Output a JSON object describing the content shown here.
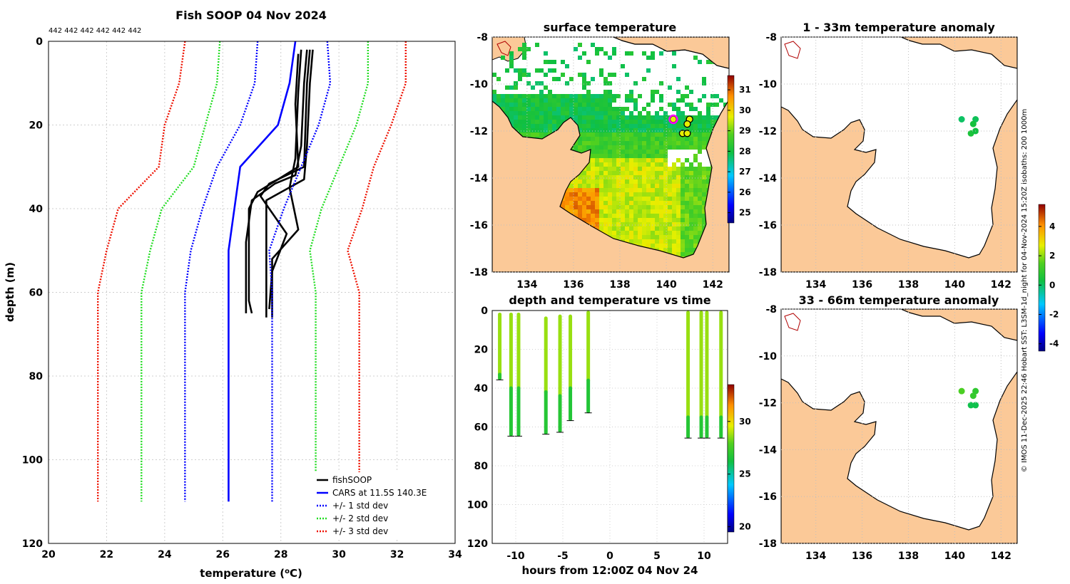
{
  "profile": {
    "title": "Fish SOOP 04 Nov 2024",
    "counts": "442 442 442 442 442 442",
    "xlabel": "temperature (",
    "xlabel_sup": "o",
    "xlabel_end": "C)",
    "ylabel": "depth (m)",
    "legend": [
      "fishSOOP",
      "CARS at 11.5S 140.3E",
      "+/- 1 std dev",
      "+/- 2 std dev",
      "+/- 3 std dev"
    ]
  },
  "maps": {
    "surface_title": "surface temperature",
    "anom1_title": "1 - 33m temperature anomaly",
    "anom2_title": "33 - 66m temperature anomaly",
    "lon_ticks": [
      "134",
      "136",
      "138",
      "140",
      "142"
    ],
    "lat_ticks": [
      "-8",
      "-10",
      "-12",
      "-14",
      "-16",
      "-18"
    ],
    "sst_colorbar_ticks": [
      "31",
      "30",
      "29",
      "28",
      "27",
      "26",
      "25"
    ],
    "anom_colorbar_ticks": [
      "4",
      "2",
      "0",
      "-2",
      "-4"
    ]
  },
  "time_panel": {
    "title": "depth and temperature vs time",
    "xlabel": "hours from 12:00Z 04 Nov 24",
    "colorbar_ticks": [
      "30",
      "25",
      "20"
    ]
  },
  "side_note": "© IMOS 11-Dec-2025 22:46 Hobart SST: L3SM-1d_night for 04-Nov-2024 15:20Z isobaths: 200  1000m",
  "colors": {
    "fishSOOP": "#000000",
    "CARS": "#0000ff",
    "std1": "#0000ff",
    "std2": "#22dd22",
    "std3": "#ee1100",
    "land": "#fbc998"
  },
  "chart_data": [
    {
      "type": "line",
      "title": "Fish SOOP 04 Nov 2024",
      "xlabel": "temperature (oC)",
      "ylabel": "depth (m)",
      "xlim": [
        20,
        34
      ],
      "ylim": [
        0,
        120
      ],
      "y_reversed": true,
      "xticks": [
        20,
        22,
        24,
        26,
        28,
        30,
        32,
        34
      ],
      "yticks": [
        0,
        20,
        40,
        60,
        80,
        100,
        120
      ],
      "grid": true,
      "legend_position": "bottom-right",
      "series": [
        {
          "name": "fishSOOP",
          "style": "solid",
          "color": "#000000",
          "profiles": [
            {
              "depth": [
                2,
                10,
                25,
                32,
                34,
                38,
                48,
                60,
                65
              ],
              "temp": [
                28.9,
                28.8,
                28.7,
                28.5,
                27.8,
                27.0,
                26.8,
                26.8,
                26.8
              ]
            },
            {
              "depth": [
                2,
                10,
                25,
                33,
                38,
                48,
                60,
                66
              ],
              "temp": [
                29.1,
                29.0,
                28.9,
                28.8,
                27.5,
                27.5,
                27.5,
                27.5
              ]
            },
            {
              "depth": [
                2,
                12,
                28,
                35,
                45,
                52,
                60,
                66
              ],
              "temp": [
                28.7,
                28.6,
                28.5,
                28.3,
                28.6,
                27.7,
                27.7,
                27.7
              ]
            },
            {
              "depth": [
                3,
                15,
                30,
                36,
                40,
                50,
                62,
                65
              ],
              "temp": [
                28.6,
                28.5,
                28.6,
                27.2,
                26.9,
                26.9,
                26.9,
                27.0
              ]
            },
            {
              "depth": [
                2,
                10,
                30,
                34,
                37,
                46,
                55,
                64
              ],
              "temp": [
                29.0,
                28.9,
                28.8,
                27.6,
                27.3,
                28.2,
                27.7,
                27.6
              ]
            }
          ]
        },
        {
          "name": "CARS at 11.5S 140.3E",
          "style": "solid",
          "color": "#0000ff",
          "depth": [
            0,
            10,
            20,
            30,
            40,
            50,
            60,
            110
          ],
          "temp": [
            28.5,
            28.3,
            27.9,
            26.6,
            26.4,
            26.2,
            26.2,
            26.2
          ]
        },
        {
          "name": "+/- 1 std dev",
          "style": "dotted",
          "color": "#0000ff",
          "depth": [
            0,
            10,
            20,
            30,
            40,
            50,
            60,
            110
          ],
          "low": [
            27.2,
            27.1,
            26.6,
            25.8,
            25.3,
            24.9,
            24.7,
            24.7
          ],
          "high": [
            29.6,
            29.7,
            29.3,
            28.7,
            28.1,
            27.6,
            27.7,
            27.7
          ]
        },
        {
          "name": "+/- 2 std dev",
          "style": "dotted",
          "color": "#22dd22",
          "depth": [
            0,
            10,
            20,
            30,
            40,
            50,
            60,
            110
          ],
          "low": [
            25.9,
            25.8,
            25.4,
            25.0,
            23.9,
            23.5,
            23.2,
            23.2
          ],
          "high": [
            31.0,
            31.0,
            30.6,
            30.0,
            29.4,
            29.0,
            29.2,
            29.2
          ]
        },
        {
          "name": "+/- 3 std dev",
          "style": "dotted",
          "color": "#ee1100",
          "depth": [
            0,
            10,
            20,
            30,
            40,
            50,
            60,
            110
          ],
          "low": [
            24.7,
            24.5,
            24.0,
            23.8,
            22.4,
            22.0,
            21.7,
            21.7
          ],
          "high": [
            32.3,
            32.3,
            31.8,
            31.2,
            30.8,
            30.3,
            30.7,
            30.7
          ]
        }
      ]
    },
    {
      "type": "scatter",
      "title": "depth and temperature vs time",
      "xlabel": "hours from 12:00Z 04 Nov 24",
      "xlim": [
        -12.5,
        12.5
      ],
      "ylim": [
        0,
        120
      ],
      "y_reversed": true,
      "xticks": [
        -10,
        -5,
        0,
        5,
        10
      ],
      "yticks": [
        0,
        20,
        40,
        60,
        80,
        100,
        120
      ],
      "colorbar": {
        "min": 19.5,
        "max": 33.5,
        "ticks": [
          20,
          25,
          30
        ]
      },
      "casts": [
        {
          "t": -11.7,
          "top": 2,
          "bottom": 35,
          "mixed": 33,
          "tsurf": 28.7,
          "tdeep": 26.9
        },
        {
          "t": -10.5,
          "top": 2,
          "bottom": 64,
          "mixed": 40,
          "tsurf": 28.7,
          "tdeep": 26.8
        },
        {
          "t": -9.7,
          "top": 2,
          "bottom": 64,
          "mixed": 40,
          "tsurf": 28.7,
          "tdeep": 26.8
        },
        {
          "t": -6.8,
          "top": 4,
          "bottom": 63,
          "mixed": 42,
          "tsurf": 28.7,
          "tdeep": 26.8
        },
        {
          "t": -5.3,
          "top": 3,
          "bottom": 62,
          "mixed": 44,
          "tsurf": 28.7,
          "tdeep": 26.8
        },
        {
          "t": -4.2,
          "top": 3,
          "bottom": 56,
          "mixed": 40,
          "tsurf": 28.7,
          "tdeep": 26.7
        },
        {
          "t": -2.3,
          "top": 1,
          "bottom": 52,
          "mixed": 36,
          "tsurf": 28.7,
          "tdeep": 26.7
        },
        {
          "t": 8.3,
          "top": 1,
          "bottom": 65,
          "mixed": 55,
          "tsurf": 28.7,
          "tdeep": 26.8
        },
        {
          "t": 9.7,
          "top": 1,
          "bottom": 65,
          "mixed": 55,
          "tsurf": 28.7,
          "tdeep": 26.8
        },
        {
          "t": 10.3,
          "top": 1,
          "bottom": 65,
          "mixed": 55,
          "tsurf": 28.7,
          "tdeep": 26.8
        },
        {
          "t": 11.8,
          "top": 1,
          "bottom": 65,
          "mixed": 55,
          "tsurf": 28.7,
          "tdeep": 26.8
        }
      ]
    },
    {
      "type": "heatmap",
      "title": "surface temperature",
      "xlim": [
        132.5,
        142.7
      ],
      "ylim": [
        -18,
        -8
      ],
      "colorbar": {
        "min": 24.5,
        "max": 31.7,
        "ticks": [
          25,
          26,
          27,
          28,
          29,
          30,
          31
        ]
      },
      "stations": [
        {
          "lon": 140.3,
          "lat": -11.5
        },
        {
          "lon": 141.0,
          "lat": -11.5
        },
        {
          "lon": 140.9,
          "lat": -11.7
        },
        {
          "lon": 140.7,
          "lat": -12.1
        },
        {
          "lon": 140.9,
          "lat": -12.1
        }
      ],
      "highlight": {
        "lon": 140.3,
        "lat": -11.5
      }
    },
    {
      "type": "scatter",
      "title": "1 - 33m temperature anomaly",
      "xlim": [
        132.5,
        142.7
      ],
      "ylim": [
        -18,
        -8
      ],
      "colorbar": {
        "min": -4.5,
        "max": 5.5,
        "ticks": [
          -4,
          -2,
          0,
          2,
          4
        ]
      },
      "points": [
        {
          "lon": 140.3,
          "lat": -11.5,
          "anom": 0.0
        },
        {
          "lon": 140.9,
          "lat": -11.5,
          "anom": 0.1
        },
        {
          "lon": 140.8,
          "lat": -11.7,
          "anom": 0.4
        },
        {
          "lon": 140.7,
          "lat": -12.1,
          "anom": 0.5
        },
        {
          "lon": 140.9,
          "lat": -12.0,
          "anom": 0.3
        }
      ]
    },
    {
      "type": "scatter",
      "title": "33 - 66m temperature anomaly",
      "xlim": [
        132.5,
        142.7
      ],
      "ylim": [
        -18,
        -8
      ],
      "colorbar": {
        "min": -4.5,
        "max": 5.5,
        "ticks": [
          -4,
          -2,
          0,
          2,
          4
        ]
      },
      "points": [
        {
          "lon": 140.3,
          "lat": -11.5,
          "anom": 1.4
        },
        {
          "lon": 140.9,
          "lat": -11.5,
          "anom": 0.9
        },
        {
          "lon": 140.8,
          "lat": -11.7,
          "anom": 1.0
        },
        {
          "lon": 140.7,
          "lat": -12.1,
          "anom": 0.2
        },
        {
          "lon": 140.9,
          "lat": -12.1,
          "anom": 0.2
        }
      ]
    }
  ]
}
